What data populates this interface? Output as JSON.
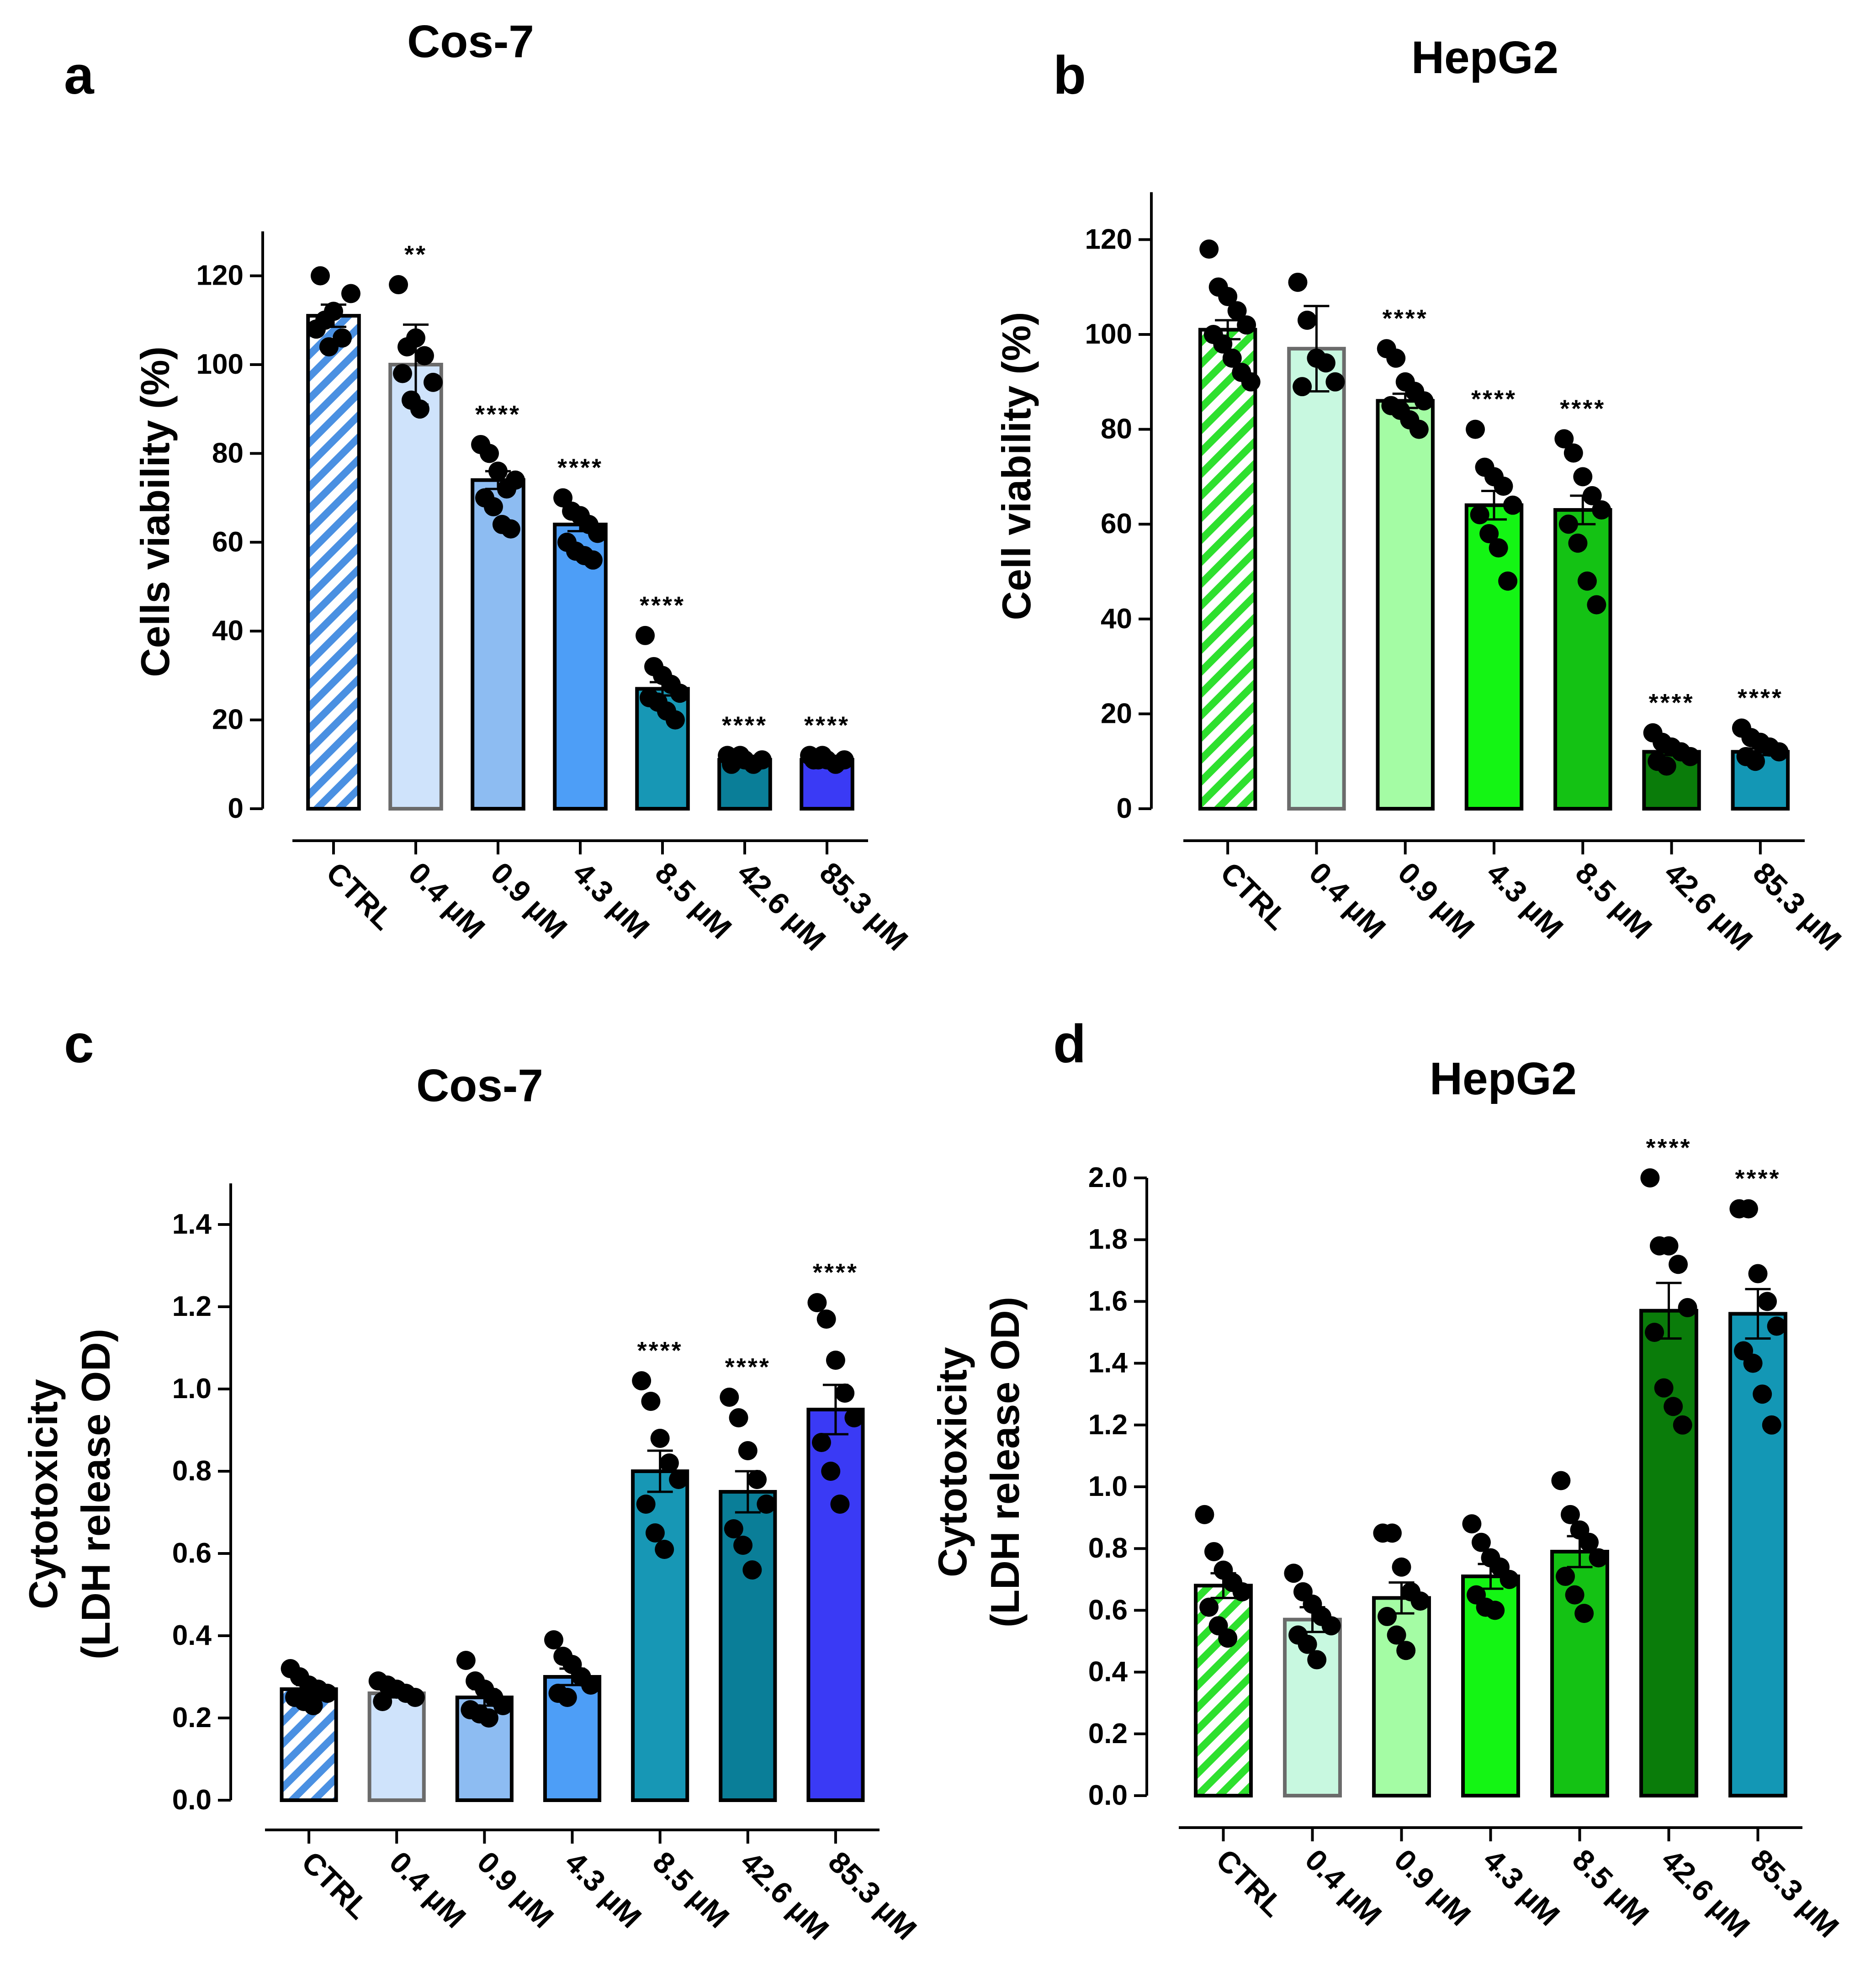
{
  "chart_data": [
    {
      "panel": "a",
      "title": "Cos-7",
      "type": "bar",
      "ylabel": "Cells viability (%)",
      "ylim": [
        0,
        130
      ],
      "yticks": [
        0,
        20,
        40,
        60,
        80,
        100,
        120
      ],
      "categories": [
        "CTRL",
        "0.4 µM",
        "0.9 µM",
        "4.3 µM",
        "8.5 µM",
        "42.6 µM",
        "85.3 µM"
      ],
      "values": [
        111,
        100,
        74,
        64,
        27,
        11,
        11
      ],
      "sem": [
        2.5,
        9,
        2,
        1.5,
        1.5,
        0.5,
        0.5
      ],
      "significance": [
        "",
        "**",
        "****",
        "****",
        "****",
        "****",
        "****"
      ],
      "points": [
        [
          108,
          110,
          112,
          106,
          116,
          120,
          104
        ],
        [
          118,
          104,
          106,
          102,
          96,
          98,
          92,
          90
        ],
        [
          82,
          80,
          76,
          72,
          74,
          70,
          68,
          64,
          63
        ],
        [
          70,
          67,
          66,
          64,
          62,
          60,
          58,
          57,
          56
        ],
        [
          39,
          32,
          30,
          28,
          26,
          25,
          24,
          22,
          20
        ],
        [
          12,
          11,
          11,
          10,
          11,
          10,
          12
        ],
        [
          12,
          11,
          11,
          10,
          11,
          11,
          12
        ]
      ],
      "colors": [
        "#4a90e2",
        "#cfe3fb",
        "#8dbcf2",
        "#4d9ef7",
        "#1797b5",
        "#0a7e98",
        "#3a3af5"
      ],
      "hatched": [
        true,
        false,
        false,
        false,
        false,
        false,
        false
      ]
    },
    {
      "panel": "b",
      "title": "HepG2",
      "type": "bar",
      "ylabel": "Cell viability (%)",
      "ylim": [
        0,
        130
      ],
      "yticks": [
        0,
        20,
        40,
        60,
        80,
        100,
        120
      ],
      "categories": [
        "CTRL",
        "0.4 µM",
        "0.9 µM",
        "4.3 µM",
        "8.5 µM",
        "42.6 µM",
        "85.3 µM"
      ],
      "values": [
        101,
        97,
        86,
        64,
        63,
        12,
        12
      ],
      "sem": [
        2,
        9,
        1.5,
        3,
        3,
        0.7,
        0.7
      ],
      "significance": [
        "",
        "",
        "****",
        "****",
        "****",
        "****",
        "****"
      ],
      "points": [
        [
          118,
          110,
          108,
          105,
          102,
          100,
          98,
          95,
          92,
          90
        ],
        [
          111,
          103,
          95,
          94,
          90,
          89
        ],
        [
          97,
          95,
          90,
          88,
          86,
          85,
          84,
          82,
          80
        ],
        [
          80,
          72,
          70,
          68,
          64,
          62,
          58,
          55,
          48
        ],
        [
          78,
          75,
          70,
          66,
          63,
          60,
          56,
          48,
          43
        ],
        [
          16,
          14,
          13,
          12,
          11,
          10,
          9
        ],
        [
          17,
          15,
          14,
          13,
          12,
          11,
          10
        ]
      ],
      "colors": [
        "#2ee02e",
        "#c8f8e0",
        "#a4fca4",
        "#14f514",
        "#14c214",
        "#0a7c0a",
        "#1397b5"
      ],
      "hatched": [
        true,
        false,
        false,
        false,
        false,
        false,
        false
      ]
    },
    {
      "panel": "c",
      "title": "Cos-7",
      "type": "bar",
      "ylabel": "Cytotoxicity",
      "ylabel2": "(LDH release OD)",
      "ylim": [
        0,
        1.5
      ],
      "yticks": [
        0.0,
        0.2,
        0.4,
        0.6,
        0.8,
        1.0,
        1.2,
        1.4
      ],
      "categories": [
        "CTRL",
        "0.4 µM",
        "0.9 µM",
        "4.3 µM",
        "8.5 µM",
        "42.6 µM",
        "85.3 µM"
      ],
      "values": [
        0.27,
        0.26,
        0.25,
        0.3,
        0.8,
        0.75,
        0.95
      ],
      "sem": [
        0.01,
        0.01,
        0.02,
        0.02,
        0.05,
        0.05,
        0.06
      ],
      "significance": [
        "",
        "",
        "",
        "",
        "****",
        "****",
        "****"
      ],
      "points": [
        [
          0.32,
          0.3,
          0.28,
          0.27,
          0.26,
          0.25,
          0.24,
          0.23
        ],
        [
          0.29,
          0.28,
          0.27,
          0.26,
          0.25,
          0.24
        ],
        [
          0.34,
          0.29,
          0.27,
          0.25,
          0.23,
          0.22,
          0.21,
          0.2
        ],
        [
          0.39,
          0.35,
          0.33,
          0.3,
          0.28,
          0.26,
          0.25
        ],
        [
          1.02,
          0.97,
          0.88,
          0.82,
          0.78,
          0.72,
          0.65,
          0.61
        ],
        [
          0.98,
          0.93,
          0.85,
          0.78,
          0.72,
          0.66,
          0.62,
          0.56
        ],
        [
          1.21,
          1.17,
          1.07,
          0.99,
          0.93,
          0.87,
          0.8,
          0.72
        ]
      ],
      "colors": [
        "#4a90e2",
        "#cfe3fb",
        "#8dbcf2",
        "#4d9ef7",
        "#1797b5",
        "#0a7e98",
        "#3a3af5"
      ],
      "hatched": [
        true,
        false,
        false,
        false,
        false,
        false,
        false
      ]
    },
    {
      "panel": "d",
      "title": "HepG2",
      "type": "bar",
      "ylabel": "Cytotoxicity",
      "ylabel2": "(LDH release OD)",
      "ylim": [
        0,
        2.0
      ],
      "yticks": [
        0.0,
        0.2,
        0.4,
        0.6,
        0.8,
        1.0,
        1.2,
        1.4,
        1.6,
        1.8,
        2.0
      ],
      "categories": [
        "CTRL",
        "0.4 µM",
        "0.9 µM",
        "4.3 µM",
        "8.5 µM",
        "42.6 µM",
        "85.3 µM"
      ],
      "values": [
        0.68,
        0.57,
        0.64,
        0.71,
        0.79,
        1.57,
        1.56
      ],
      "sem": [
        0.04,
        0.04,
        0.05,
        0.04,
        0.05,
        0.09,
        0.08
      ],
      "significance": [
        "",
        "",
        "",
        "",
        "",
        "****",
        "****"
      ],
      "points": [
        [
          0.91,
          0.79,
          0.73,
          0.69,
          0.66,
          0.61,
          0.55,
          0.51
        ],
        [
          0.72,
          0.66,
          0.62,
          0.58,
          0.55,
          0.52,
          0.49,
          0.44
        ],
        [
          0.85,
          0.85,
          0.74,
          0.66,
          0.63,
          0.58,
          0.52,
          0.47
        ],
        [
          0.88,
          0.82,
          0.77,
          0.74,
          0.7,
          0.65,
          0.61,
          0.6
        ],
        [
          1.02,
          0.91,
          0.86,
          0.82,
          0.77,
          0.71,
          0.65,
          0.59
        ],
        [
          2.0,
          1.78,
          1.78,
          1.72,
          1.58,
          1.5,
          1.32,
          1.26,
          1.2
        ],
        [
          1.9,
          1.9,
          1.69,
          1.6,
          1.52,
          1.44,
          1.4,
          1.3,
          1.2
        ]
      ],
      "colors": [
        "#2ee02e",
        "#c8f8e0",
        "#a4fca4",
        "#14f514",
        "#14c214",
        "#0a7c0a",
        "#1397b5"
      ],
      "hatched": [
        true,
        false,
        false,
        false,
        false,
        false,
        false
      ]
    }
  ]
}
